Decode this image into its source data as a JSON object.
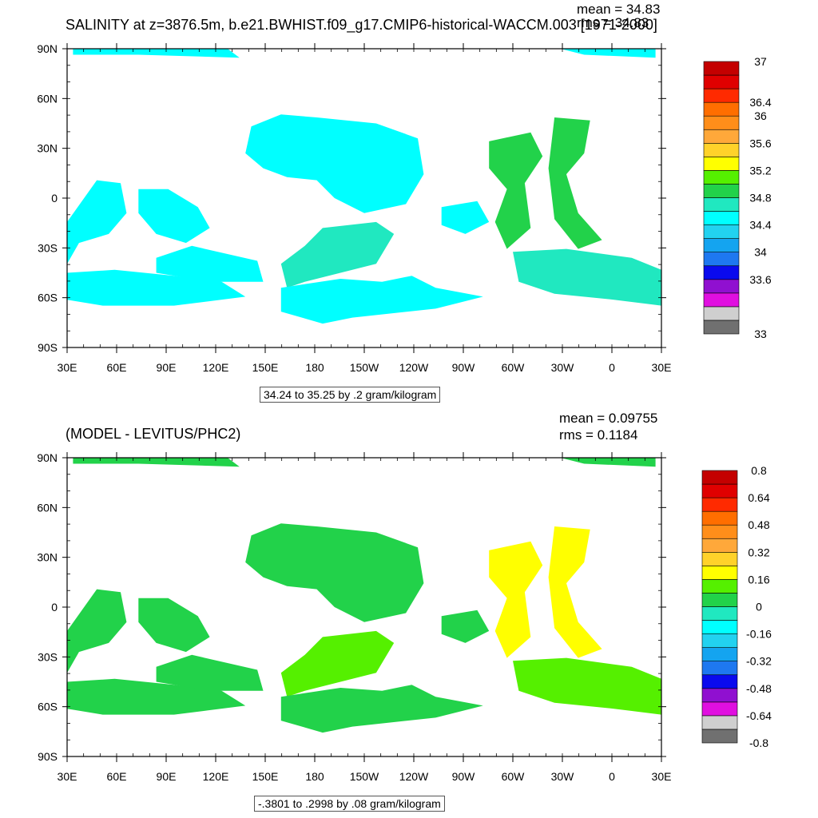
{
  "panels": [
    {
      "title": "SALINITY at z=3876.5m, b.e21.BWHIST.f09_g17.CMIP6-historical-WACCM.003 [1971-2000]",
      "mean": "mean = 34.83",
      "rms": "rms = 34.83",
      "info": "34.24 to 35.25 by .2 gram/kilogram",
      "colorbar": {
        "colors": [
          "#707070",
          "#cfcfcf",
          "#e00fe0",
          "#9010d0",
          "#0a0aee",
          "#1e78f0",
          "#14a4f0",
          "#22d2f0",
          "#00ffff",
          "#20e8c0",
          "#22d24a",
          "#55f000",
          "#ffff00",
          "#ffd22a",
          "#ffa83a",
          "#ff8e1a",
          "#ff6e00",
          "#ff2a00",
          "#e00000",
          "#c40000"
        ],
        "labels": [
          "33",
          "33.6",
          "34",
          "34.4",
          "34.8",
          "35.2",
          "35.6",
          "36",
          "36.4",
          "37"
        ],
        "label_index": [
          0,
          4,
          6,
          8,
          10,
          12,
          14,
          16,
          17,
          20
        ]
      },
      "map_colors": {
        "main": "#00ffff",
        "secondary": "#20e8c0",
        "tertiary": "#22d24a"
      }
    },
    {
      "title": "(MODEL - LEVITUS/PHC2)",
      "mean": "mean = 0.09755",
      "rms": "rms = 0.1184",
      "info": "-.3801 to .2998 by .08 gram/kilogram",
      "colorbar": {
        "colors": [
          "#707070",
          "#cfcfcf",
          "#e00fe0",
          "#9010d0",
          "#0a0aee",
          "#1e78f0",
          "#14a4f0",
          "#22d2f0",
          "#00ffff",
          "#20e8c0",
          "#22d24a",
          "#55f000",
          "#ffff00",
          "#ffd22a",
          "#ffa83a",
          "#ff8e1a",
          "#ff6e00",
          "#ff2a00",
          "#e00000",
          "#c40000"
        ],
        "labels": [
          "-0.8",
          "-0.64",
          "-0.48",
          "-0.32",
          "-0.16",
          "0",
          "0.16",
          "0.32",
          "0.48",
          "0.64",
          "0.8"
        ],
        "label_index": [
          0,
          2,
          4,
          6,
          8,
          10,
          12,
          14,
          16,
          18,
          20
        ]
      },
      "map_colors": {
        "main": "#22d24a",
        "secondary": "#55f000",
        "tertiary": "#ffff00"
      }
    }
  ],
  "axes": {
    "lat_labels": [
      "90N",
      "60N",
      "30N",
      "0",
      "30S",
      "60S",
      "90S"
    ],
    "lon_labels": [
      "30E",
      "60E",
      "90E",
      "120E",
      "150E",
      "180",
      "150W",
      "120W",
      "90W",
      "60W",
      "30W",
      "0",
      "30E"
    ]
  }
}
